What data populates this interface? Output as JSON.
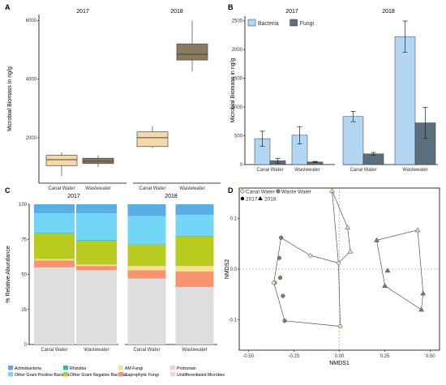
{
  "panels": {
    "a": "A",
    "b": "B",
    "c": "C",
    "d": "D"
  },
  "colors": {
    "canal_box": "#f5d9a8",
    "waste_box": "#8c7a60",
    "bacteria": "#b3d7f2",
    "fungi": "#5c6f7e",
    "canal_pt": "#f3dbb5",
    "waste_pt": "#8a7762"
  },
  "chart_data": [
    {
      "type": "boxplot",
      "id": "A",
      "facets": [
        "2017",
        "2018"
      ],
      "categories": [
        "Canal Water",
        "Wastewater"
      ],
      "ylabel": "Microbial Biomass in ng/g",
      "yticks": [
        2000,
        4000,
        6000
      ],
      "ylim": [
        450,
        6200
      ],
      "series": [
        {
          "facet": "2017",
          "category": "Canal Water",
          "min": 700,
          "q1": 1050,
          "median": 1250,
          "q3": 1400,
          "max": 1500,
          "fill": "#f5d9a8"
        },
        {
          "facet": "2017",
          "category": "Wastewater",
          "min": 1000,
          "q1": 1120,
          "median": 1200,
          "q3": 1300,
          "max": 1400,
          "fill": "#8c7a60"
        },
        {
          "facet": "2018",
          "category": "Canal Water",
          "min": 1650,
          "q1": 1700,
          "median": 2000,
          "q3": 2200,
          "max": 2400,
          "fill": "#f5d9a8"
        },
        {
          "facet": "2018",
          "category": "Wastewater",
          "min": 4250,
          "q1": 4650,
          "median": 4850,
          "q3": 5200,
          "max": 6000,
          "fill": "#8c7a60"
        }
      ]
    },
    {
      "type": "bar",
      "id": "B",
      "facets": [
        "2017",
        "2018"
      ],
      "categories": [
        "Canal Water",
        "Wastewater"
      ],
      "ylabel": "Microbial Biomass in ng/g",
      "yticks": [
        0,
        500,
        1000,
        1500,
        2000,
        2500
      ],
      "ylim": [
        0,
        2580
      ],
      "legend": {
        "position": "top-left"
      },
      "series": [
        {
          "name": "Bacteria",
          "color": "#b3d7f2",
          "values": {
            "2017": [
              450,
              510
            ],
            "2018": [
              835,
              2225
            ]
          },
          "errors": {
            "2017": [
              130,
              150
            ],
            "2018": [
              90,
              270
            ]
          }
        },
        {
          "name": "Fungi",
          "color": "#5c6f7e",
          "values": {
            "2017": [
              65,
              45
            ],
            "2018": [
              185,
              725
            ]
          },
          "errors": {
            "2017": [
              40,
              10
            ],
            "2018": [
              25,
              270
            ]
          }
        }
      ]
    },
    {
      "type": "stacked-bar",
      "id": "C",
      "facets": [
        "2017",
        "2018"
      ],
      "categories": [
        "Canal Water",
        "Wastewater"
      ],
      "ylabel": "% Relative Abundance",
      "yticks": [
        0,
        25,
        50,
        75,
        100
      ],
      "ylim": [
        0,
        100
      ],
      "legend": {
        "position": "bottom"
      },
      "series": [
        {
          "name": "Undifferentiated Microbes",
          "color": "#dedede",
          "values": {
            "2017": [
              55,
              53
            ],
            "2018": [
              47,
              41
            ]
          }
        },
        {
          "name": "Protozoan",
          "color": "#f2cfcf",
          "values": {
            "2017": [
              0,
              0
            ],
            "2018": [
              0,
              0
            ]
          }
        },
        {
          "name": "Saprophytic Fungi",
          "color": "#f79371",
          "values": {
            "2017": [
              5,
              3
            ],
            "2018": [
              6,
              11
            ]
          }
        },
        {
          "name": "AM Fungi",
          "color": "#f0e38c",
          "values": {
            "2017": [
              1,
              1
            ],
            "2018": [
              3,
              4
            ]
          }
        },
        {
          "name": "Other Gram Negative Bacteria",
          "color": "#b7cc1f",
          "values": {
            "2017": [
              18,
              17
            ],
            "2018": [
              15,
              21
            ]
          }
        },
        {
          "name": "Rhizobia",
          "color": "#2fbf9e",
          "values": {
            "2017": [
              0.5,
              0.5
            ],
            "2018": [
              0.5,
              0.5
            ]
          }
        },
        {
          "name": "Other Gram Positive Bacteria",
          "color": "#72d6f7",
          "values": {
            "2017": [
              14,
              19
            ],
            "2018": [
              20,
              15
            ]
          }
        },
        {
          "name": "Actinobacteria",
          "color": "#5aaee3",
          "values": {
            "2017": [
              6.5,
              6.5
            ],
            "2018": [
              8.5,
              7.5
            ]
          }
        }
      ],
      "legend_order": [
        "Actinobacteria",
        "Rhizobia",
        "AM Fungi",
        "Protozoan",
        "Other Gram Positive Bacteria",
        "Other Gram Negative Bacteria",
        "Saprophytic Fungi",
        "Undifferentiated Microbes"
      ]
    },
    {
      "type": "scatter",
      "id": "D",
      "xlabel": "NMDS1",
      "ylabel": "NMDS2",
      "xticks": [
        -0.5,
        -0.25,
        0.0,
        0.25,
        0.5
      ],
      "xtick_labels": [
        "-0.50",
        "-0.25",
        "0.00",
        "0.25",
        "0.50"
      ],
      "yticks": [
        -0.1,
        0.0,
        0.1
      ],
      "ytick_labels": [
        "-0.1",
        "0.0",
        "0.1"
      ],
      "xlim": [
        -0.55,
        0.55
      ],
      "ylim": [
        -0.16,
        0.16
      ],
      "legend": {
        "position": "top-left",
        "water": [
          "Canal Water",
          "Waste Water"
        ],
        "years": [
          "2017",
          "2018"
        ]
      },
      "points": [
        {
          "x": -0.32,
          "y": 0.062,
          "water": "waste",
          "year": "2017"
        },
        {
          "x": -0.33,
          "y": 0.022,
          "water": "waste",
          "year": "2017"
        },
        {
          "x": -0.325,
          "y": -0.017,
          "water": "waste",
          "year": "2017"
        },
        {
          "x": -0.355,
          "y": -0.027,
          "water": "waste",
          "year": "2017"
        },
        {
          "x": -0.31,
          "y": -0.053,
          "water": "waste",
          "year": "2017"
        },
        {
          "x": -0.3,
          "y": -0.102,
          "water": "waste",
          "year": "2017"
        },
        {
          "x": -0.16,
          "y": 0.027,
          "water": "canal",
          "year": "2017"
        },
        {
          "x": -0.005,
          "y": 0.012,
          "water": "canal",
          "year": "2017"
        },
        {
          "x": -0.36,
          "y": -0.027,
          "water": "canal",
          "year": "2017"
        },
        {
          "x": 0.005,
          "y": -0.113,
          "water": "canal",
          "year": "2017"
        },
        {
          "x": -0.04,
          "y": 0.155,
          "water": "canal",
          "year": "2018"
        },
        {
          "x": 0.045,
          "y": 0.082,
          "water": "canal",
          "year": "2018"
        },
        {
          "x": 0.06,
          "y": 0.035,
          "water": "canal",
          "year": "2018"
        },
        {
          "x": 0.43,
          "y": 0.077,
          "water": "canal",
          "year": "2018"
        },
        {
          "x": 0.205,
          "y": 0.057,
          "water": "waste",
          "year": "2018"
        },
        {
          "x": 0.265,
          "y": -0.003,
          "water": "waste",
          "year": "2018"
        },
        {
          "x": 0.25,
          "y": -0.033,
          "water": "waste",
          "year": "2018"
        },
        {
          "x": 0.46,
          "y": -0.048,
          "water": "waste",
          "year": "2018"
        },
        {
          "x": 0.45,
          "y": -0.08,
          "water": "waste",
          "year": "2018"
        }
      ],
      "hulls": [
        [
          [
            -0.16,
            0.027
          ],
          [
            -0.005,
            0.012
          ],
          [
            0.005,
            -0.113
          ],
          [
            -0.3,
            -0.102
          ],
          [
            -0.36,
            -0.027
          ],
          [
            -0.32,
            0.062
          ]
        ],
        [
          [
            -0.04,
            0.155
          ],
          [
            0.045,
            0.082
          ],
          [
            0.06,
            0.035
          ],
          [
            -0.005,
            0.012
          ]
        ],
        [
          [
            0.205,
            0.057
          ],
          [
            0.43,
            0.077
          ],
          [
            0.46,
            -0.048
          ],
          [
            0.45,
            -0.08
          ],
          [
            0.25,
            -0.033
          ]
        ]
      ]
    }
  ]
}
